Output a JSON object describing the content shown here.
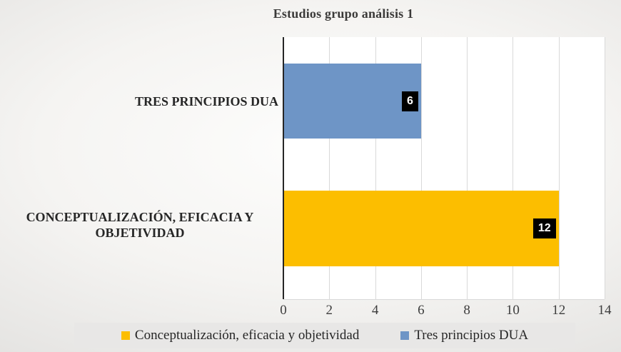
{
  "chart_data": {
    "type": "bar",
    "orientation": "horizontal",
    "title": "Estudios grupo análisis 1",
    "categories": [
      "TRES PRINCIPIOS DUA",
      "CONCEPTUALIZACIÓN, EFICACIA Y OBJETIVIDAD"
    ],
    "bars": [
      {
        "category": "TRES PRINCIPIOS DUA",
        "value": 6,
        "label": "6",
        "color": "#6e95c6"
      },
      {
        "category": "CONCEPTUALIZACIÓN, EFICACIA Y OBJETIVIDAD",
        "value": 12,
        "label": "12",
        "color": "#fcbe00"
      }
    ],
    "series": [
      {
        "name": "Conceptualización, eficacia y objetividad",
        "color": "#fcbe00",
        "values": [
          null,
          12
        ]
      },
      {
        "name": "Tres principios DUA",
        "color": "#6e95c6",
        "values": [
          6,
          null
        ]
      }
    ],
    "xlim": [
      0,
      14
    ],
    "xticks": [
      0,
      2,
      4,
      6,
      8,
      10,
      12,
      14
    ],
    "grid": true,
    "gridline_color": "#d9d9d9",
    "axis_line_color": "#262626",
    "plot_background": "#ffffff",
    "data_label_style": {
      "background": "#000000",
      "text_color": "#ffffff"
    },
    "legend_position": "bottom"
  },
  "category_labels": [
    {
      "lines": [
        "TRES PRINCIPIOS DUA"
      ]
    },
    {
      "lines": [
        "CONCEPTUALIZACIÓN, EFICACIA Y",
        "OBJETIVIDAD"
      ]
    }
  ],
  "legend": {
    "background": "#e8e7e6",
    "items": [
      {
        "label": "Conceptualización, eficacia y objetividad",
        "color": "#fcbe00"
      },
      {
        "label": "Tres principios DUA",
        "color": "#6e95c6"
      }
    ]
  }
}
